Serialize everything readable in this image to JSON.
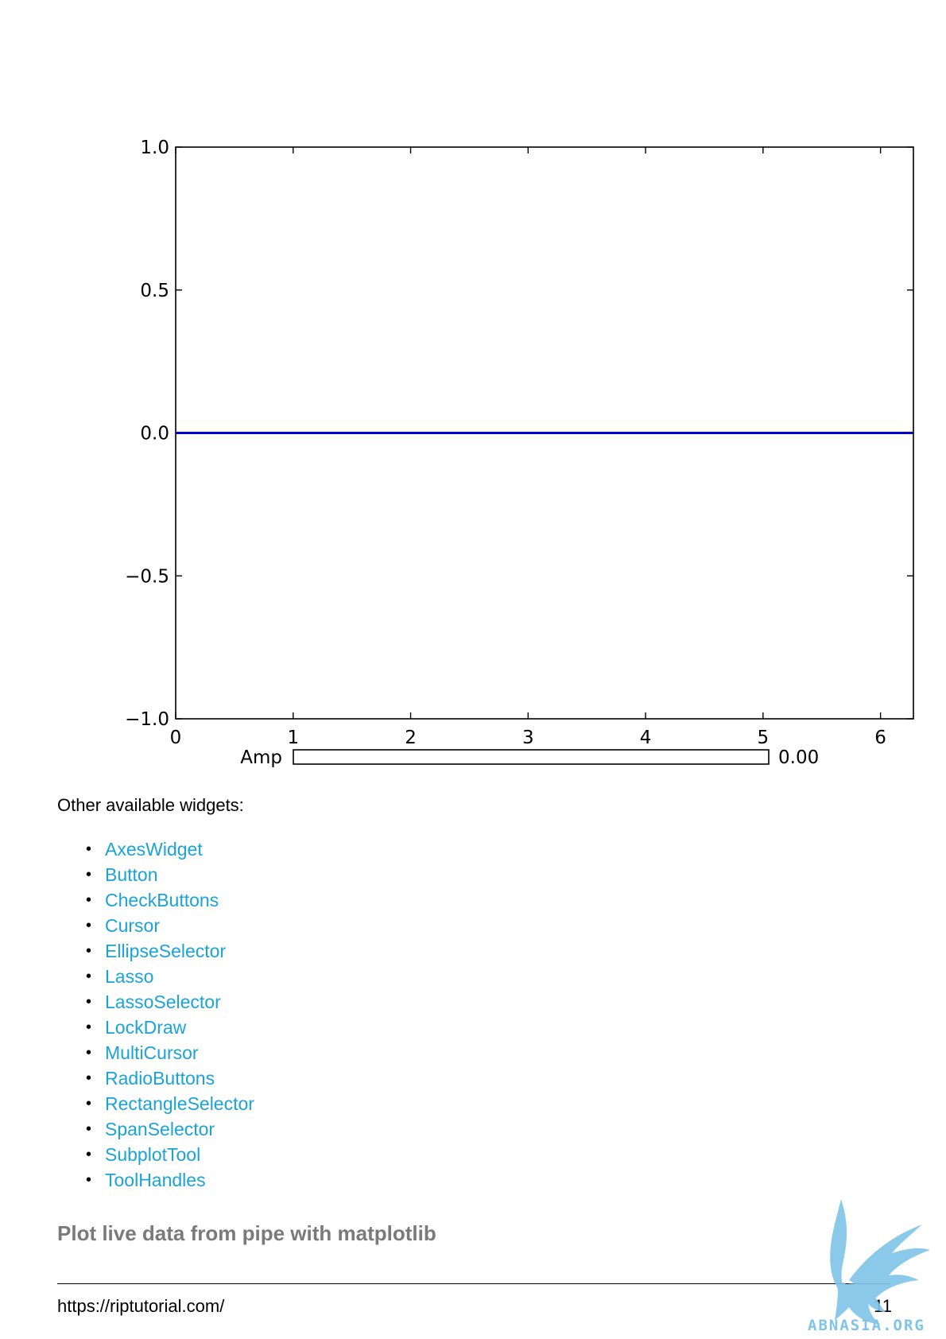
{
  "chart_data": {
    "type": "line",
    "x": [
      0,
      6.28
    ],
    "series": [
      {
        "values": [
          0,
          0
        ],
        "color": "#0000cc"
      }
    ],
    "xlim": [
      0,
      6.28
    ],
    "ylim": [
      -1.0,
      1.0
    ],
    "x_ticks": [
      0,
      1,
      2,
      3,
      4,
      5,
      6
    ],
    "x_tick_labels": [
      "0",
      "1",
      "2",
      "3",
      "4",
      "5",
      "6"
    ],
    "y_ticks": [
      1.0,
      0.5,
      0.0,
      -0.5,
      -1.0
    ],
    "y_tick_labels": [
      "1.0",
      "0.5",
      "0.0",
      "−0.5",
      "−1.0"
    ],
    "grid": false,
    "slider": {
      "label": "Amp",
      "value": 0.0,
      "fraction": 0.0,
      "value_text": "0.00"
    }
  },
  "intro_text": "Other available widgets:",
  "widgets": [
    "AxesWidget",
    "Button",
    "CheckButtons",
    "Cursor",
    "EllipseSelector",
    "Lasso",
    "LassoSelector",
    "LockDraw",
    "MultiCursor",
    "RadioButtons",
    "RectangleSelector",
    "SpanSelector",
    "SubplotTool",
    "ToolHandles"
  ],
  "link_color": "#1aa3d9",
  "section_title": "Plot live data from pipe with matplotlib",
  "footer": {
    "url": "https://riptutorial.com/",
    "page_number": "11"
  },
  "watermark": {
    "text": "ABNASIA.ORG",
    "icon": "griffin-logo-icon",
    "color": "#7fc4e8"
  }
}
